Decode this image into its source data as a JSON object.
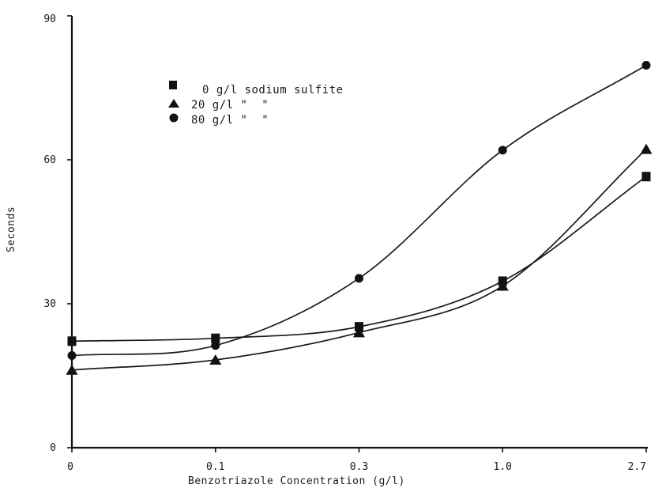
{
  "chart_data": {
    "type": "line",
    "title": "",
    "xlabel": "Benzotriazole Concentration  (g/l)",
    "ylabel": "Seconds",
    "categories": [
      "0",
      "0.1",
      "0.3",
      "1.0",
      "2.7"
    ],
    "y_tick_labels": [
      "0",
      "30",
      "60",
      "90"
    ],
    "ylim": [
      0,
      90
    ],
    "grid": false,
    "legend_position": "upper-left",
    "series": [
      {
        "name": "0 g/l sodium sulfite",
        "marker": "square",
        "values": [
          22.2,
          22.8,
          25.2,
          34.7,
          56.5
        ]
      },
      {
        "name": "20 g/l \"  \"",
        "marker": "triangle",
        "values": [
          16.2,
          18.3,
          24.0,
          33.7,
          62.2
        ]
      },
      {
        "name": "80 g/l \"  \"",
        "marker": "circle",
        "values": [
          19.2,
          21.3,
          35.3,
          62.0,
          79.7
        ]
      }
    ]
  }
}
